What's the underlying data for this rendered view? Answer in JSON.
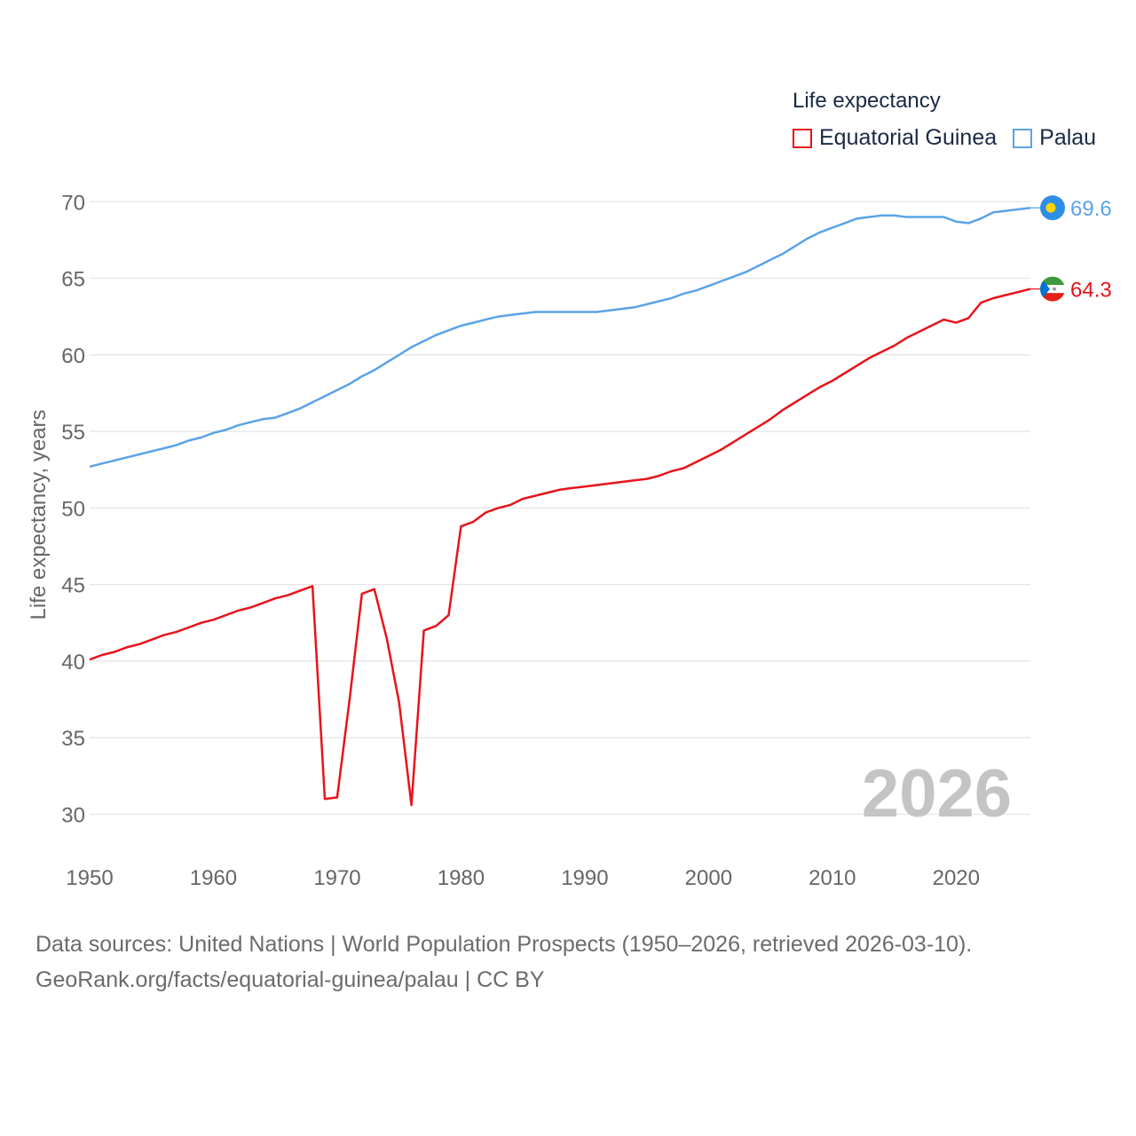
{
  "chart_data": {
    "type": "line",
    "title": "",
    "legend_title": "Life expectancy",
    "ylabel": "Life expectancy, years",
    "xlabel": "",
    "year_overlay": "2026",
    "xlim": [
      1950,
      2026
    ],
    "ylim": [
      28,
      71
    ],
    "x_ticks": [
      1950,
      1960,
      1970,
      1980,
      1990,
      2000,
      2010,
      2020
    ],
    "y_ticks": [
      30,
      35,
      40,
      45,
      50,
      55,
      60,
      65,
      70
    ],
    "x": [
      1950,
      1951,
      1952,
      1953,
      1954,
      1955,
      1956,
      1957,
      1958,
      1959,
      1960,
      1961,
      1962,
      1963,
      1964,
      1965,
      1966,
      1967,
      1968,
      1969,
      1970,
      1971,
      1972,
      1973,
      1974,
      1975,
      1976,
      1977,
      1978,
      1979,
      1980,
      1981,
      1982,
      1983,
      1984,
      1985,
      1986,
      1987,
      1988,
      1989,
      1990,
      1991,
      1992,
      1993,
      1994,
      1995,
      1996,
      1997,
      1998,
      1999,
      2000,
      2001,
      2002,
      2003,
      2004,
      2005,
      2006,
      2007,
      2008,
      2009,
      2010,
      2011,
      2012,
      2013,
      2014,
      2015,
      2016,
      2017,
      2018,
      2019,
      2020,
      2021,
      2022,
      2023,
      2024,
      2025,
      2026
    ],
    "series": [
      {
        "name": "Equatorial Guinea",
        "color": "#e8131a",
        "end_label": "64.3",
        "values": [
          40.1,
          40.4,
          40.6,
          40.9,
          41.1,
          41.4,
          41.7,
          41.9,
          42.2,
          42.5,
          42.7,
          43.0,
          43.3,
          43.5,
          43.8,
          44.1,
          44.3,
          44.6,
          44.9,
          31.0,
          31.1,
          37.5,
          44.4,
          44.7,
          41.5,
          37.3,
          30.6,
          42.0,
          42.3,
          43.0,
          48.8,
          49.1,
          49.7,
          50.0,
          50.2,
          50.6,
          50.8,
          51.0,
          51.2,
          51.3,
          51.4,
          51.5,
          51.6,
          51.7,
          51.8,
          51.9,
          52.1,
          52.4,
          52.6,
          53.0,
          53.4,
          53.8,
          54.3,
          54.8,
          55.3,
          55.8,
          56.4,
          56.9,
          57.4,
          57.9,
          58.3,
          58.8,
          59.3,
          59.8,
          60.2,
          60.6,
          61.1,
          61.5,
          61.9,
          62.3,
          62.1,
          62.4,
          63.4,
          63.7,
          63.9,
          64.1,
          64.3
        ]
      },
      {
        "name": "Palau",
        "color": "#5ba3e6",
        "end_label": "69.6",
        "values": [
          52.7,
          52.9,
          53.1,
          53.3,
          53.5,
          53.7,
          53.9,
          54.1,
          54.4,
          54.6,
          54.9,
          55.1,
          55.4,
          55.6,
          55.8,
          55.9,
          56.2,
          56.5,
          56.9,
          57.3,
          57.7,
          58.1,
          58.6,
          59.0,
          59.5,
          60.0,
          60.5,
          60.9,
          61.3,
          61.6,
          61.9,
          62.1,
          62.3,
          62.5,
          62.6,
          62.7,
          62.8,
          62.8,
          62.8,
          62.8,
          62.8,
          62.8,
          62.9,
          63.0,
          63.1,
          63.3,
          63.5,
          63.7,
          64.0,
          64.2,
          64.5,
          64.8,
          65.1,
          65.4,
          65.8,
          66.2,
          66.6,
          67.1,
          67.6,
          68.0,
          68.3,
          68.6,
          68.9,
          69.0,
          69.1,
          69.1,
          69.0,
          69.0,
          69.0,
          69.0,
          68.7,
          68.6,
          68.9,
          69.3,
          69.4,
          69.5,
          69.6
        ]
      }
    ]
  },
  "footer": {
    "line1": "Data sources: United Nations | World Population Prospects (1950–2026, retrieved 2026-03-10).",
    "line2": "GeoRank.org/facts/equatorial-guinea/palau | CC BY"
  },
  "icons": {
    "eq_guinea_flag": "equatorial-guinea-flag-icon",
    "palau_flag": "palau-flag-icon"
  }
}
